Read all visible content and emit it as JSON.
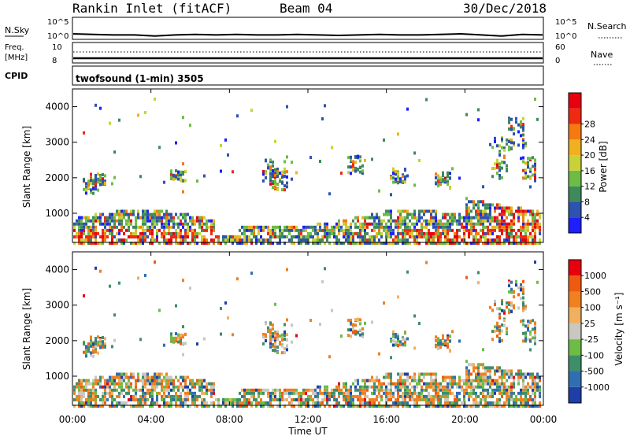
{
  "header": {
    "station": "Rankin Inlet (fitACF)",
    "beam": "Beam 04",
    "date": "30/Dec/2018"
  },
  "chart_data": [
    {
      "type": "line",
      "panel": "noise",
      "left_label": "N.Sky",
      "right_label": "N.Search",
      "y_ticks_left": [
        "10^5",
        "10^0"
      ],
      "y_ticks_right": [
        "10^5",
        "10^0"
      ],
      "series": [
        {
          "values": [
            0.25,
            0.22,
            0.2,
            0.2,
            0.15,
            0.2,
            0.22,
            0.2,
            0.22,
            0.2,
            0.2,
            0.22,
            0.2,
            0.18,
            0.2,
            0.22,
            0.2,
            0.2,
            0.22,
            0.25,
            0.2,
            0.15,
            0.22,
            0.2
          ]
        }
      ]
    },
    {
      "type": "line",
      "panel": "frequency",
      "left_label_lines": [
        "Freq.",
        "[MHz]"
      ],
      "right_label": "Nave",
      "y_ticks_left": [
        "10",
        "8"
      ],
      "y_ticks_right": [
        "60",
        "0"
      ],
      "freq_mhz": 8,
      "nave": 30
    },
    {
      "type": "table",
      "panel": "cpid",
      "label": "CPID",
      "text": "twofsound (1-min) 3505"
    },
    {
      "type": "heatmap",
      "panel": "power",
      "ylabel": "Slant Range [km]",
      "y_ticks": [
        1000,
        2000,
        3000,
        4000
      ],
      "ylim": [
        180,
        4500
      ],
      "colorbar_label": "Power [dB]",
      "colorbar_ticks": [
        "4",
        "8",
        "12",
        "16",
        "20",
        "24",
        "28"
      ],
      "colorbar_colors": [
        "#1e1eff",
        "#2d52b0",
        "#3e8a5a",
        "#6cbc45",
        "#c8d238",
        "#f0b020",
        "#f47a10",
        "#ee2a10",
        "#e8000f"
      ]
    },
    {
      "type": "heatmap",
      "panel": "velocity",
      "ylabel": "Slant Range [km]",
      "y_ticks": [
        1000,
        2000,
        3000,
        4000
      ],
      "ylim": [
        180,
        4500
      ],
      "colorbar_label": "Velocity [m s⁻¹]",
      "colorbar_ticks": [
        "1000",
        "500",
        "100",
        "25",
        "-25",
        "-100",
        "-500",
        "-1000"
      ],
      "colorbar_colors": [
        "#1e3ea8",
        "#2f6eb0",
        "#3e8e6a",
        "#6cbc45",
        "#c8c8c0",
        "#f0b060",
        "#f08020",
        "#f05a10",
        "#e8000f"
      ]
    }
  ],
  "x_axis": {
    "label": "Time UT",
    "ticks": [
      "00:00",
      "04:00",
      "08:00",
      "12:00",
      "16:00",
      "20:00",
      "00:00"
    ],
    "range_hours": [
      0,
      24
    ]
  }
}
